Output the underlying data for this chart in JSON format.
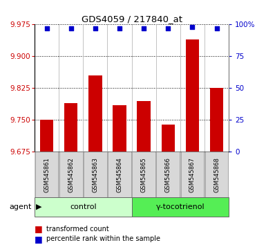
{
  "title": "GDS4059 / 217840_at",
  "samples": [
    "GSM545861",
    "GSM545862",
    "GSM545863",
    "GSM545864",
    "GSM545865",
    "GSM545866",
    "GSM545867",
    "GSM545868"
  ],
  "bar_values": [
    9.75,
    9.79,
    9.855,
    9.785,
    9.795,
    9.74,
    9.94,
    9.825
  ],
  "dot_percentiles": [
    97,
    97,
    97,
    97,
    97,
    97,
    98,
    97
  ],
  "ylim_left": [
    9.675,
    9.975
  ],
  "ylim_right": [
    0,
    100
  ],
  "yticks_left": [
    9.675,
    9.75,
    9.825,
    9.9,
    9.975
  ],
  "yticks_right": [
    0,
    25,
    50,
    75,
    100
  ],
  "bar_color": "#cc0000",
  "dot_color": "#0000cc",
  "group1_label": "control",
  "group2_label": "γ-tocotrienol",
  "group1_color": "#ccffcc",
  "group2_color": "#55ee55",
  "group1_indices": [
    0,
    1,
    2,
    3
  ],
  "group2_indices": [
    4,
    5,
    6,
    7
  ],
  "legend_bar": "transformed count",
  "legend_dot": "percentile rank within the sample",
  "bar_width": 0.55
}
